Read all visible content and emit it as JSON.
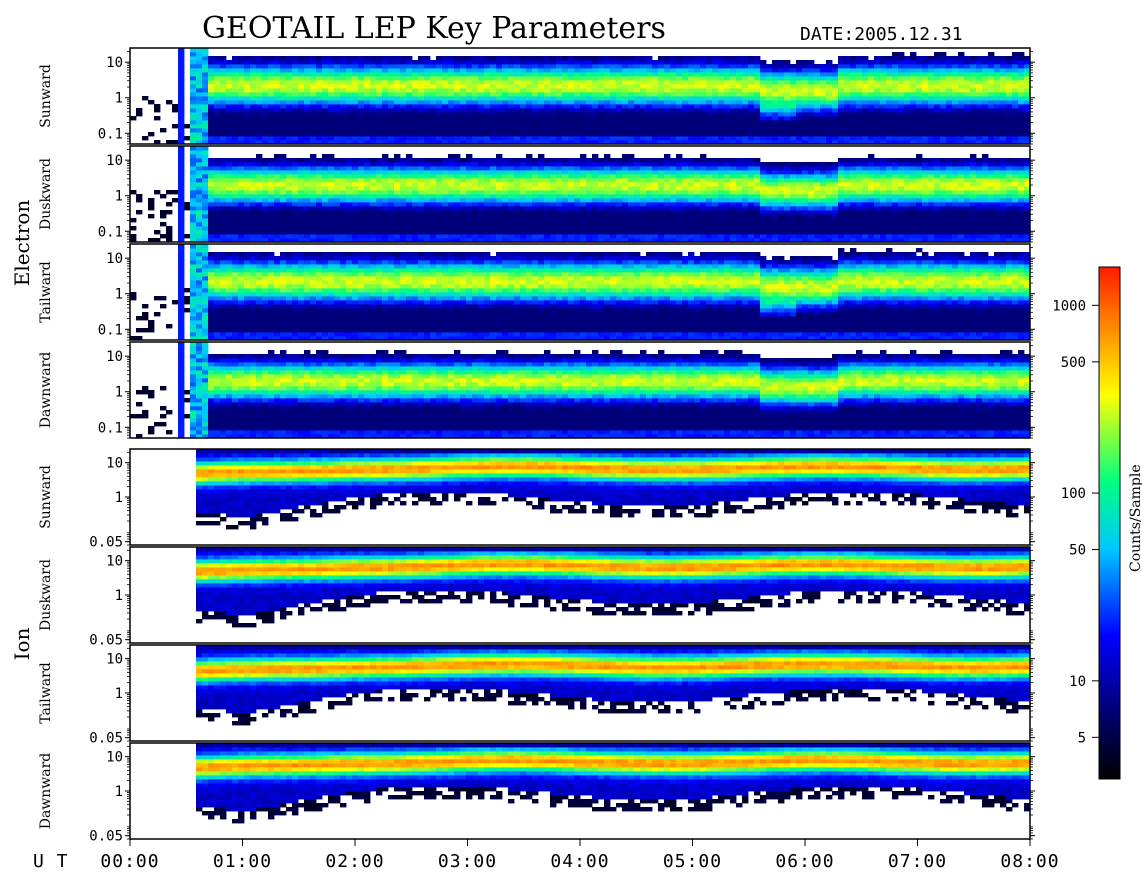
{
  "chart_data": {
    "type": "heatmap",
    "title": "GEOTAIL LEP Key Parameters",
    "date_label": "DATE:",
    "date_value": "2005.12.31",
    "x_label": "U T",
    "x_ticks": [
      "00:00",
      "01:00",
      "02:00",
      "03:00",
      "04:00",
      "05:00",
      "06:00",
      "07:00",
      "08:00"
    ],
    "xlim_hours": [
      0,
      8
    ],
    "groups": [
      {
        "name": "Electron",
        "y_ticks": [
          "10",
          "1",
          "0.1"
        ],
        "ylim": [
          0.05,
          25
        ],
        "panels": [
          {
            "direction": "Sunward",
            "peak_log": 0.35,
            "width": 0.62,
            "dip": true
          },
          {
            "direction": "Duskward",
            "peak_log": 0.3,
            "width": 0.58,
            "dip": false
          },
          {
            "direction": "Tailward",
            "peak_log": 0.35,
            "width": 0.62,
            "dip": true
          },
          {
            "direction": "Dawnward",
            "peak_log": 0.3,
            "width": 0.58,
            "dip": false
          }
        ]
      },
      {
        "name": "Ion",
        "y_ticks": [
          "10",
          "1",
          "0.05"
        ],
        "ylim": [
          0.04,
          25
        ],
        "panels": [
          {
            "direction": "Sunward",
            "peak_log": 0.85
          },
          {
            "direction": "Duskward",
            "peak_log": 0.85
          },
          {
            "direction": "Tailward",
            "peak_log": 0.8
          },
          {
            "direction": "Dawnward",
            "peak_log": 0.85
          }
        ]
      }
    ],
    "colorbar": {
      "label": "Counts/Sample",
      "ticks": [
        "1000",
        "500",
        "100",
        "50",
        "10",
        "5"
      ],
      "tick_values": [
        1000,
        500,
        100,
        50,
        10,
        5
      ],
      "range": [
        3,
        1600
      ],
      "scale": "log",
      "colors": [
        "#000000",
        "#0000ff",
        "#00ffff",
        "#00ff00",
        "#ffff00",
        "#ff0000"
      ]
    }
  }
}
